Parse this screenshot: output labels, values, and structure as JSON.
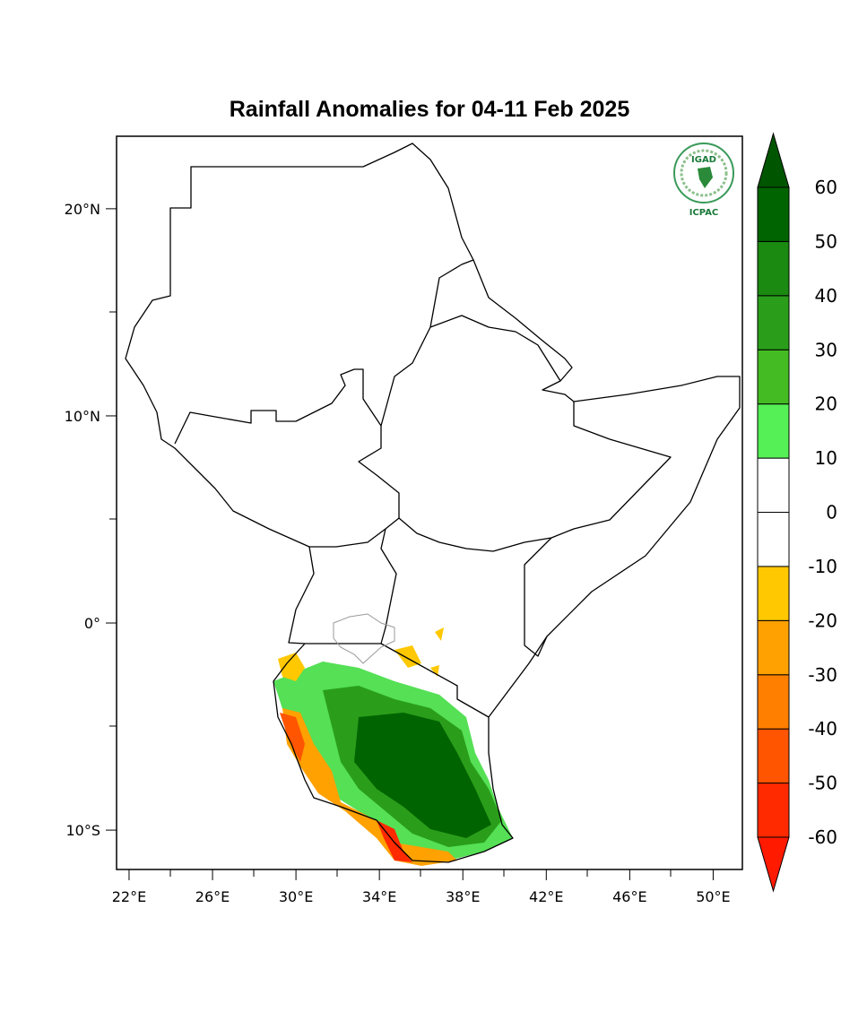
{
  "chart_data": {
    "type": "map",
    "title": "Rainfall Anomalies for 04-11 Feb 2025",
    "logo": {
      "name": "IGAD",
      "org": "ICPAC"
    },
    "xlim": [
      21.4,
      51.4
    ],
    "ylim": [
      -11.9,
      23.5
    ],
    "xticks": [
      {
        "value": 22,
        "label": "22°E"
      },
      {
        "value": 26,
        "label": "26°E"
      },
      {
        "value": 30,
        "label": "30°E"
      },
      {
        "value": 34,
        "label": "34°E"
      },
      {
        "value": 38,
        "label": "38°E"
      },
      {
        "value": 42,
        "label": "42°E"
      },
      {
        "value": 46,
        "label": "46°E"
      },
      {
        "value": 50,
        "label": "50°E"
      }
    ],
    "yticks": [
      {
        "value": 20,
        "label": "20°N"
      },
      {
        "value": 10,
        "label": "10°N"
      },
      {
        "value": 0,
        "label": "0°"
      },
      {
        "value": -10,
        "label": "10°S"
      }
    ],
    "colorbar": {
      "levels": [
        -60,
        -50,
        -40,
        -30,
        -20,
        -10,
        0,
        10,
        20,
        30,
        40,
        50,
        60
      ],
      "colors": [
        "#ff2a00",
        "#ff5400",
        "#ff7f00",
        "#ffa100",
        "#ffc800",
        "#ffffff",
        "#ffffff",
        "#55f055",
        "#44bb22",
        "#2a9e1a",
        "#1a8a10",
        "#006400"
      ],
      "under_color": "#ff1a00",
      "over_color": "#005500"
    }
  }
}
